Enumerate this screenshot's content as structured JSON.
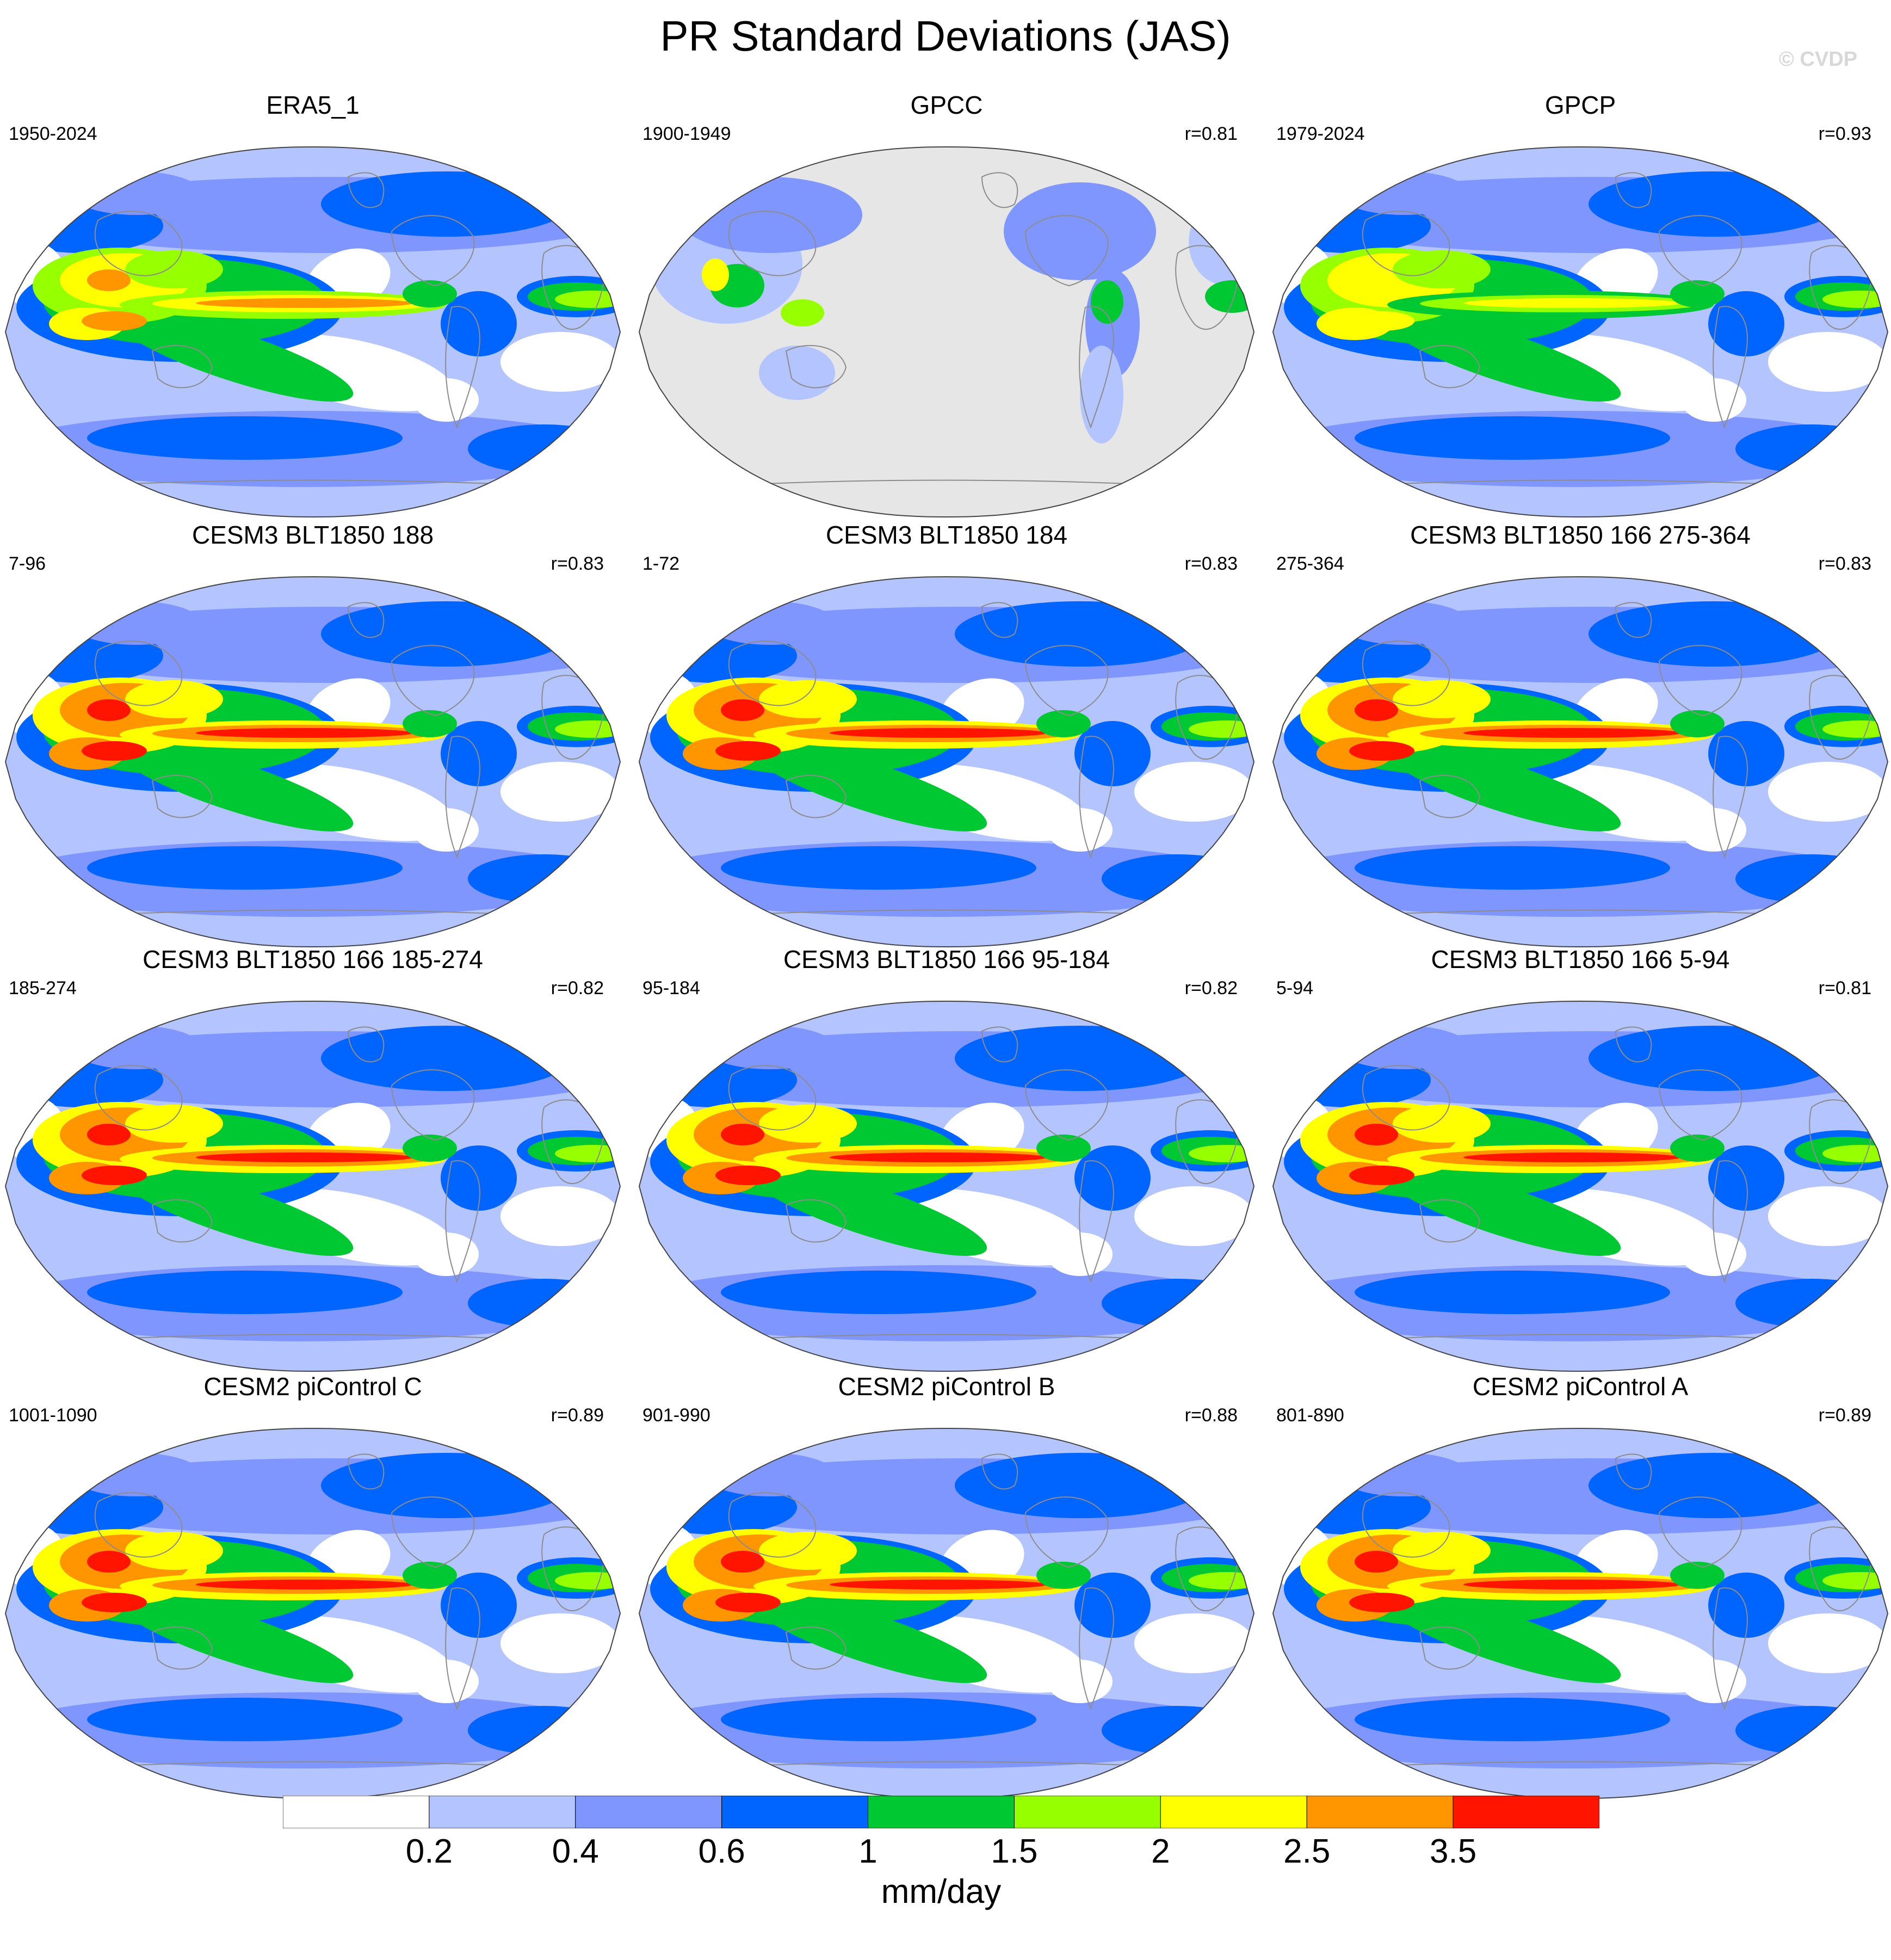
{
  "figure": {
    "title": "PR Standard Deviations (JAS)",
    "watermark": "© CVDP"
  },
  "colors": {
    "levels": [
      "#ffffff",
      "#b4c4ff",
      "#8096ff",
      "#0064ff",
      "#00c832",
      "#96ff00",
      "#ffff00",
      "#ff9600",
      "#ff1400"
    ],
    "land_mask": "#e6e6e6",
    "coastline": "#8c8c8c"
  },
  "chart_data": {
    "type": "heatmap",
    "projection": "robinson-global-map",
    "colorbar": {
      "boundaries": [
        "0.2",
        "0.4",
        "0.6",
        "1",
        "1.5",
        "2",
        "2.5",
        "3.5"
      ],
      "units": "mm/day"
    },
    "panels": [
      {
        "title": "ERA5_1",
        "years": "1950-2024",
        "r": "",
        "land_missing": false,
        "pacific_peak_level": 7,
        "warmpool_level": 6
      },
      {
        "title": "GPCC",
        "years": "1900-1949",
        "r": "r=0.81",
        "land_missing": true,
        "pacific_peak_level": 0,
        "warmpool_level": 0
      },
      {
        "title": "GPCP",
        "years": "1979-2024",
        "r": "r=0.93",
        "land_missing": false,
        "pacific_peak_level": 6,
        "warmpool_level": 6
      },
      {
        "title": "CESM3 BLT1850 188",
        "years": "7-96",
        "r": "r=0.83",
        "land_missing": false,
        "pacific_peak_level": 8,
        "warmpool_level": 7
      },
      {
        "title": "CESM3 BLT1850 184",
        "years": "1-72",
        "r": "r=0.83",
        "land_missing": false,
        "pacific_peak_level": 8,
        "warmpool_level": 7
      },
      {
        "title": "CESM3 BLT1850 166 275-364",
        "years": "275-364",
        "r": "r=0.83",
        "land_missing": false,
        "pacific_peak_level": 8,
        "warmpool_level": 7
      },
      {
        "title": "CESM3 BLT1850 166 185-274",
        "years": "185-274",
        "r": "r=0.82",
        "land_missing": false,
        "pacific_peak_level": 8,
        "warmpool_level": 7
      },
      {
        "title": "CESM3 BLT1850 166 95-184",
        "years": "95-184",
        "r": "r=0.82",
        "land_missing": false,
        "pacific_peak_level": 8,
        "warmpool_level": 7
      },
      {
        "title": "CESM3 BLT1850 166 5-94",
        "years": "5-94",
        "r": "r=0.81",
        "land_missing": false,
        "pacific_peak_level": 8,
        "warmpool_level": 7
      },
      {
        "title": "CESM2 piControl C",
        "years": "1001-1090",
        "r": "r=0.89",
        "land_missing": false,
        "pacific_peak_level": 8,
        "warmpool_level": 7
      },
      {
        "title": "CESM2 piControl B",
        "years": "901-990",
        "r": "r=0.88",
        "land_missing": false,
        "pacific_peak_level": 8,
        "warmpool_level": 7
      },
      {
        "title": "CESM2 piControl A",
        "years": "801-890",
        "r": "r=0.89",
        "land_missing": false,
        "pacific_peak_level": 8,
        "warmpool_level": 7
      }
    ]
  }
}
